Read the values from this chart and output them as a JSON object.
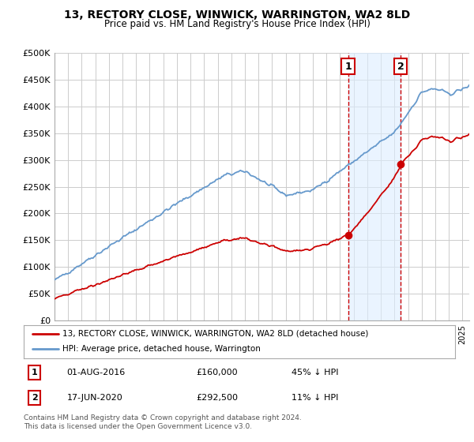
{
  "title": "13, RECTORY CLOSE, WINWICK, WARRINGTON, WA2 8LD",
  "subtitle": "Price paid vs. HM Land Registry's House Price Index (HPI)",
  "ylim": [
    0,
    500000
  ],
  "yticks": [
    0,
    50000,
    100000,
    150000,
    200000,
    250000,
    300000,
    350000,
    400000,
    450000,
    500000
  ],
  "ytick_labels": [
    "£0",
    "£50K",
    "£100K",
    "£150K",
    "£200K",
    "£250K",
    "£300K",
    "£350K",
    "£400K",
    "£450K",
    "£500K"
  ],
  "xlim_start": 1995.0,
  "xlim_end": 2025.5,
  "transaction1": {
    "date": 2016.583,
    "price": 160000,
    "label": "1",
    "date_str": "01-AUG-2016",
    "price_str": "£160,000",
    "pct_str": "45% ↓ HPI"
  },
  "transaction2": {
    "date": 2020.458,
    "price": 292500,
    "label": "2",
    "date_str": "17-JUN-2020",
    "price_str": "£292,500",
    "pct_str": "11% ↓ HPI"
  },
  "legend_property": "13, RECTORY CLOSE, WINWICK, WARRINGTON, WA2 8LD (detached house)",
  "legend_hpi": "HPI: Average price, detached house, Warrington",
  "footer": "Contains HM Land Registry data © Crown copyright and database right 2024.\nThis data is licensed under the Open Government Licence v3.0.",
  "property_line_color": "#cc0000",
  "hpi_line_color": "#6699cc",
  "vline_color": "#cc0000",
  "bg_color": "#ffffff",
  "grid_color": "#cccccc",
  "highlight_bg": "#ddeeff"
}
